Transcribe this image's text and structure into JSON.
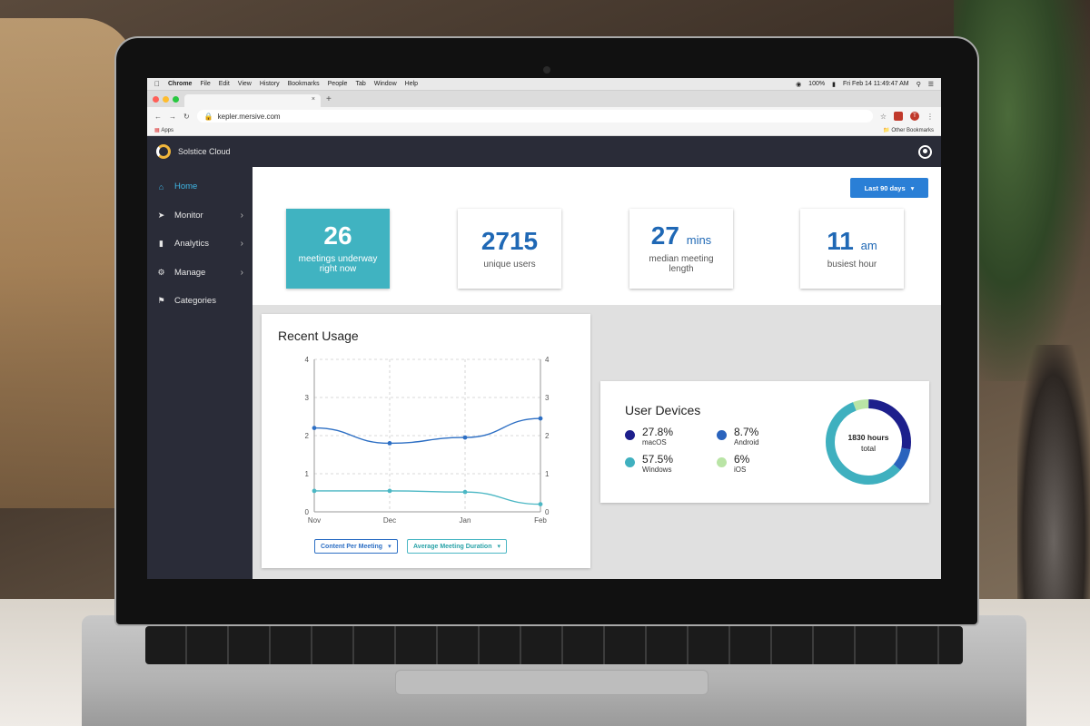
{
  "browser": {
    "menubar": {
      "app": "Chrome",
      "items": [
        "File",
        "Edit",
        "View",
        "History",
        "Bookmarks",
        "People",
        "Tab",
        "Window",
        "Help"
      ],
      "battery": "100%",
      "clock": "Fri Feb 14  11:49:47 AM"
    },
    "url": "kepler.mersive.com",
    "bookmarks_apps": "Apps",
    "other_bookmarks": "Other Bookmarks",
    "extension_initial": "T"
  },
  "app": {
    "brand": "Solstice Cloud",
    "nav": [
      {
        "label": "Home",
        "icon": "home-icon",
        "active": true
      },
      {
        "label": "Monitor",
        "icon": "rocket-icon"
      },
      {
        "label": "Analytics",
        "icon": "bar-chart-icon"
      },
      {
        "label": "Manage",
        "icon": "gear-icon"
      },
      {
        "label": "Categories",
        "icon": "tag-icon"
      }
    ],
    "date_range": "Last 90 days",
    "stats": [
      {
        "value": "26",
        "unit": "",
        "label": "meetings underway right now"
      },
      {
        "value": "2715",
        "unit": "",
        "label": "unique users"
      },
      {
        "value": "27",
        "unit": "mins",
        "label": "median meeting length"
      },
      {
        "value": "11",
        "unit": "am",
        "label": "busiest hour"
      }
    ],
    "recent_usage": {
      "title": "Recent Usage",
      "legend_content": "Content Per Meeting",
      "legend_duration": "Average Meeting Duration"
    },
    "user_devices": {
      "title": "User Devices",
      "total_hours": "1830 hours",
      "total_label": "total",
      "items": [
        {
          "pct": "27.8%",
          "name": "macOS",
          "color": "#1d1f8c"
        },
        {
          "pct": "8.7%",
          "name": "Android",
          "color": "#2a63bd"
        },
        {
          "pct": "57.5%",
          "name": "Windows",
          "color": "#3fb0bf"
        },
        {
          "pct": "6%",
          "name": "iOS",
          "color": "#b9e4a5"
        }
      ]
    }
  },
  "chart_data": {
    "type": "line",
    "title": "Recent Usage",
    "categories": [
      "Nov",
      "Dec",
      "Jan",
      "Feb"
    ],
    "ylim": [
      0,
      4
    ],
    "yticks": [
      0,
      1,
      2,
      3,
      4
    ],
    "grid": true,
    "series": [
      {
        "name": "Content Per Meeting",
        "color": "#2d6fc4",
        "values": [
          2.2,
          1.8,
          1.95,
          2.45
        ]
      },
      {
        "name": "Average Meeting Duration",
        "color": "#4bb7c4",
        "values": [
          0.55,
          0.55,
          0.52,
          0.2
        ]
      }
    ],
    "donut": {
      "values": [
        27.8,
        8.7,
        57.5,
        6
      ],
      "order": [
        "macOS",
        "Android",
        "Windows",
        "iOS"
      ]
    }
  },
  "colors": {
    "accent": "#2a7fd6",
    "teal": "#40b3c1",
    "sidebar": "#2a2c38",
    "active_nav": "#3fb6e5"
  }
}
